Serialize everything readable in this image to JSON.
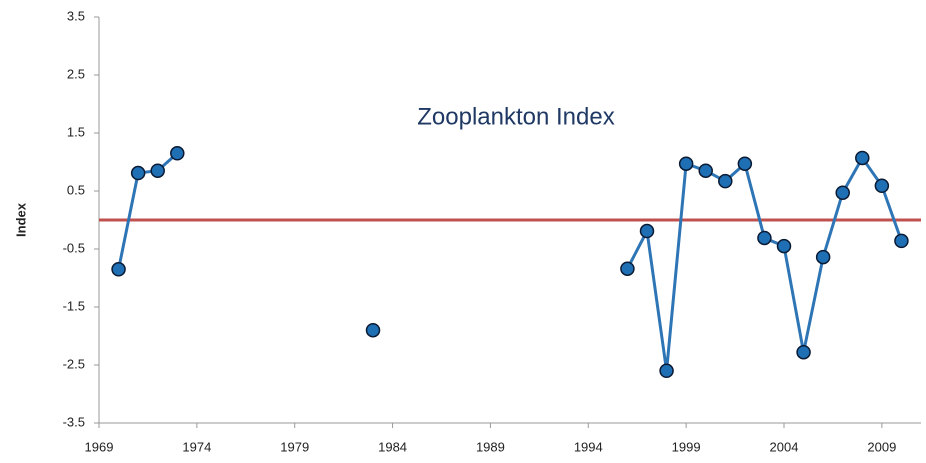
{
  "chart_data": {
    "type": "line",
    "title": "Zooplankton Index",
    "y_label": "Index",
    "x": [
      1970,
      1971,
      1972,
      1973,
      1974,
      1975,
      1976,
      1977,
      1978,
      1979,
      1980,
      1981,
      1982,
      1983,
      1984,
      1985,
      1986,
      1987,
      1988,
      1989,
      1990,
      1991,
      1992,
      1993,
      1994,
      1995,
      1996,
      1997,
      1998,
      1999,
      2000,
      2001,
      2002,
      2003,
      2004,
      2005,
      2006,
      2007,
      2008,
      2009,
      2010
    ],
    "series": [
      {
        "color": "#2e75b6",
        "marker_color": "#1f6fb5",
        "values": [
          -0.85,
          0.81,
          0.85,
          1.15,
          null,
          null,
          null,
          null,
          null,
          null,
          null,
          null,
          null,
          -1.9,
          null,
          null,
          null,
          null,
          null,
          null,
          null,
          null,
          null,
          null,
          null,
          null,
          -0.84,
          -0.19,
          -2.6,
          0.97,
          0.85,
          0.67,
          0.97,
          -0.31,
          -0.45,
          -2.28,
          -0.64,
          0.47,
          1.07,
          0.59,
          -0.36
        ]
      }
    ],
    "reference_line": {
      "value": 0,
      "color": "#c0504d"
    },
    "xlim": [
      1969,
      2011
    ],
    "xticks": [
      1969,
      1974,
      1979,
      1984,
      1989,
      1994,
      1999,
      2004,
      2009
    ],
    "ylim": [
      -3.5,
      3.5
    ],
    "yticks": [
      -3.5,
      -2.5,
      -1.5,
      -0.5,
      0.5,
      1.5,
      2.5,
      3.5
    ],
    "grid": false
  }
}
